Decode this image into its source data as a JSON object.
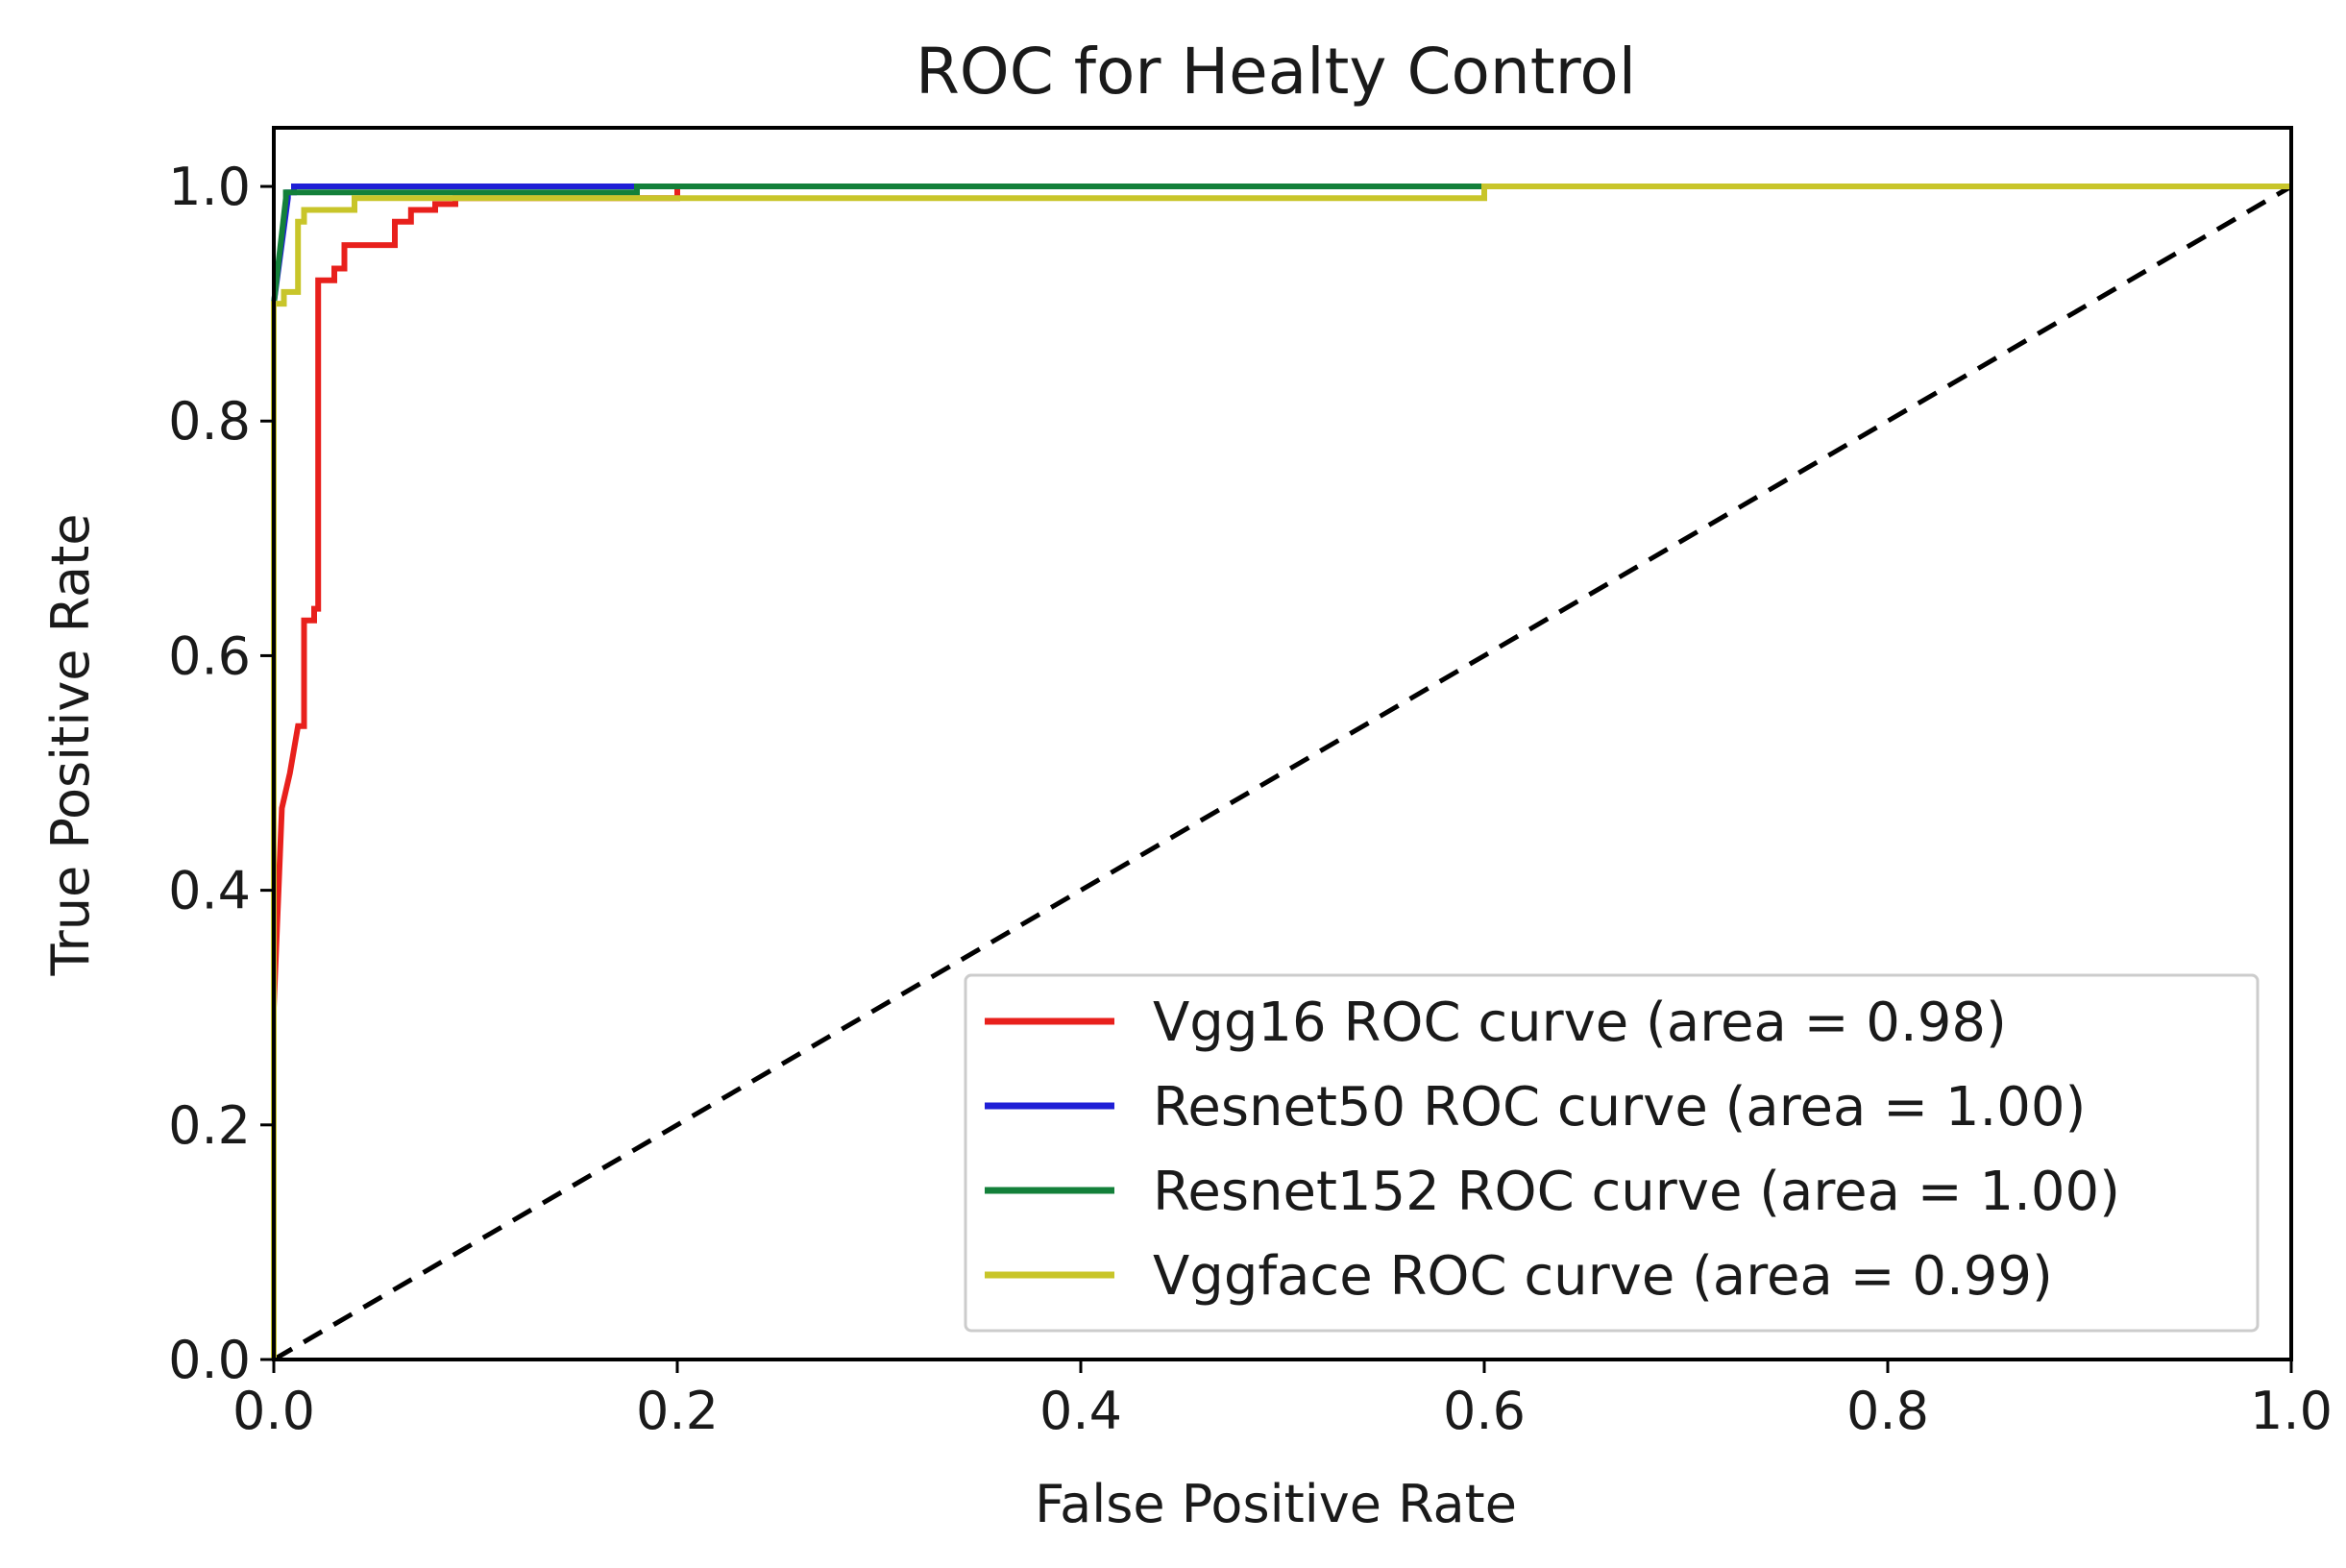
{
  "chart_data": {
    "type": "line",
    "title": "ROC for Healty Control",
    "xlabel": "False Positive Rate",
    "ylabel": "True Positive Rate",
    "xlim": [
      0.0,
      1.0
    ],
    "ylim": [
      0.0,
      1.05
    ],
    "xticks": [
      0.0,
      0.2,
      0.4,
      0.6,
      0.8,
      1.0
    ],
    "xtick_labels": [
      "0.0",
      "0.2",
      "0.4",
      "0.6",
      "0.8",
      "1.0"
    ],
    "yticks": [
      0.0,
      0.2,
      0.4,
      0.6,
      0.8,
      1.0
    ],
    "ytick_labels": [
      "0.0",
      "0.2",
      "0.4",
      "0.6",
      "0.8",
      "1.0"
    ],
    "grid": false,
    "legend_position": "lower-right",
    "series": [
      {
        "name": "Vgg16 ROC curve (area = 0.98)",
        "color": "#e8201c",
        "x": [
          0.0,
          0.0,
          0.004,
          0.008,
          0.012,
          0.015,
          0.015,
          0.02,
          0.02,
          0.022,
          0.022,
          0.03,
          0.03,
          0.035,
          0.035,
          0.045,
          0.045,
          0.055,
          0.055,
          0.06,
          0.06,
          0.068,
          0.068,
          0.08,
          0.08,
          0.09,
          0.09,
          0.2,
          0.2,
          1.0
        ],
        "y": [
          0.0,
          0.3,
          0.47,
          0.5,
          0.54,
          0.54,
          0.63,
          0.63,
          0.64,
          0.64,
          0.92,
          0.92,
          0.93,
          0.93,
          0.95,
          0.95,
          0.95,
          0.95,
          0.95,
          0.95,
          0.97,
          0.97,
          0.98,
          0.98,
          0.985,
          0.985,
          0.99,
          0.99,
          1.0,
          1.0
        ]
      },
      {
        "name": "Resnet50 ROC curve (area = 1.00)",
        "color": "#1f1fd6",
        "x": [
          0.0,
          0.0,
          0.007,
          0.007,
          0.01,
          0.01,
          0.025,
          0.025,
          1.0
        ],
        "y": [
          0.0,
          0.9,
          0.99,
          0.995,
          0.995,
          1.0,
          1.0,
          1.0,
          1.0
        ]
      },
      {
        "name": "Resnet152 ROC curve (area = 1.00)",
        "color": "#13803a",
        "x": [
          0.0,
          0.0,
          0.006,
          0.006,
          0.18,
          0.18,
          0.6,
          0.6,
          1.0
        ],
        "y": [
          0.0,
          0.9,
          0.99,
          0.995,
          0.995,
          1.0,
          1.0,
          1.0,
          1.0
        ]
      },
      {
        "name": "Vggface ROC curve (area = 0.99)",
        "color": "#c8c52a",
        "x": [
          0.0,
          0.0,
          0.005,
          0.005,
          0.012,
          0.012,
          0.015,
          0.015,
          0.04,
          0.04,
          0.6,
          0.6,
          1.0
        ],
        "y": [
          0.0,
          0.9,
          0.9,
          0.91,
          0.91,
          0.97,
          0.97,
          0.98,
          0.98,
          0.99,
          0.99,
          1.0,
          1.0
        ]
      }
    ],
    "reference_line": {
      "x": [
        0.0,
        1.0
      ],
      "y": [
        0.0,
        1.0
      ],
      "color": "#000000",
      "style": "dashed"
    }
  }
}
